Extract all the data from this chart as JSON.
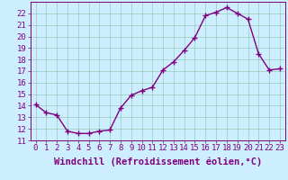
{
  "x": [
    0,
    1,
    2,
    3,
    4,
    5,
    6,
    7,
    8,
    9,
    10,
    11,
    12,
    13,
    14,
    15,
    16,
    17,
    18,
    19,
    20,
    21,
    22,
    23
  ],
  "y": [
    14.1,
    13.4,
    13.2,
    11.8,
    11.6,
    11.6,
    11.8,
    11.9,
    13.8,
    14.9,
    15.3,
    15.6,
    17.1,
    17.8,
    18.8,
    19.9,
    21.8,
    22.1,
    22.5,
    22.0,
    21.5,
    18.5,
    17.1,
    17.2
  ],
  "line_color": "#800080",
  "marker": "+",
  "marker_size": 4,
  "marker_lw": 1.0,
  "bg_color": "#cceeff",
  "grid_color": "#99ccbb",
  "xlabel": "Windchill (Refroidissement éolien,°C)",
  "xlabel_fontsize": 7.5,
  "ylim": [
    11,
    23
  ],
  "xlim": [
    -0.5,
    23.5
  ],
  "xtick_labels": [
    "0",
    "1",
    "2",
    "3",
    "4",
    "5",
    "6",
    "7",
    "8",
    "9",
    "10",
    "11",
    "12",
    "13",
    "14",
    "15",
    "16",
    "17",
    "18",
    "19",
    "20",
    "21",
    "22",
    "23"
  ],
  "tick_color": "#800080",
  "tick_fontsize": 6.5,
  "spine_color": "#800080",
  "linewidth": 1.0
}
